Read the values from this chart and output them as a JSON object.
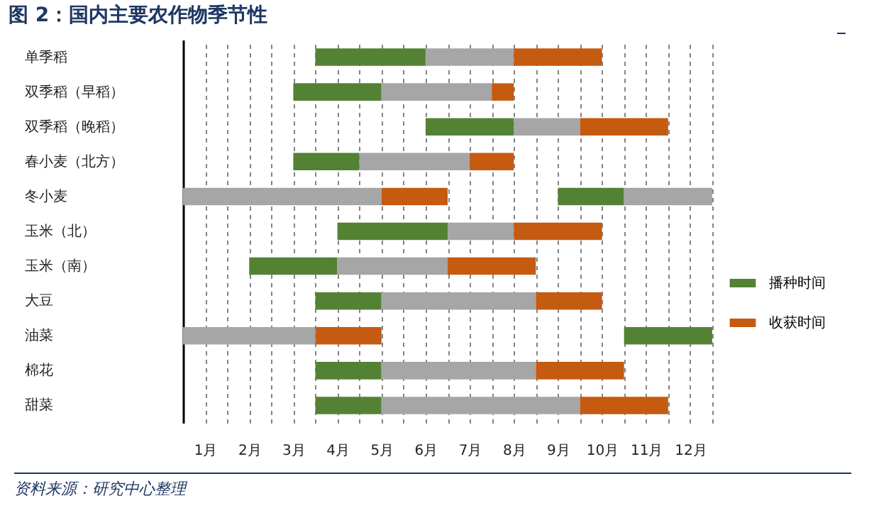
{
  "chart_data": {
    "type": "bar",
    "orientation": "horizontal",
    "title": "图 2：国内主要农作物季节性",
    "annotations": [
      "资料来源：研究中心整理"
    ],
    "categories": [
      "单季稻",
      "双季稻（早稻）",
      "双季稻（晚稻）",
      "春小麦（北方）",
      "冬小麦",
      "玉米（北）",
      "玉米（南）",
      "大豆",
      "油菜",
      "棉花",
      "甜菜"
    ],
    "series": [
      {
        "name": "播种时间",
        "color": "#548235",
        "base": [
          3,
          2.5,
          5.5,
          2.5,
          8.5,
          3.5,
          1.5,
          3,
          10,
          3,
          3
        ],
        "values": [
          2.5,
          2,
          2,
          1.5,
          1.5,
          2.5,
          2,
          1.5,
          2,
          1.5,
          1.5
        ]
      },
      {
        "color": "#a6a6a6",
        "base": [
          5.5,
          4.5,
          7.5,
          4,
          0,
          6,
          3.5,
          4.5,
          0,
          4.5,
          4.5
        ],
        "values": [
          2,
          2.5,
          1.5,
          2.5,
          4.5,
          1.5,
          2.5,
          3.5,
          3,
          3.5,
          4.5
        ]
      },
      {
        "name": "收获时间",
        "color": "#c55a11",
        "base": [
          7.5,
          7,
          9,
          6.5,
          4.5,
          7.5,
          6,
          8,
          3,
          8,
          9
        ],
        "values": [
          2,
          0.5,
          2,
          1,
          1.5,
          2,
          2,
          1.5,
          1.5,
          2,
          2
        ]
      },
      {
        "color": "#a6a6a6",
        "base": [
          null,
          null,
          null,
          null,
          10,
          null,
          null,
          null,
          null,
          null,
          null
        ],
        "values": [
          null,
          null,
          null,
          null,
          2,
          null,
          null,
          null,
          null,
          null,
          null
        ]
      }
    ],
    "xlim": [
      0,
      12
    ],
    "xticks": [
      {
        "value": 0.5,
        "label": "1月"
      },
      {
        "value": 1,
        "label": null
      },
      {
        "value": 1.5,
        "label": "2月"
      },
      {
        "value": 2,
        "label": null
      },
      {
        "value": 2.5,
        "label": "3月"
      },
      {
        "value": 3,
        "label": null
      },
      {
        "value": 3.5,
        "label": "4月"
      },
      {
        "value": 4,
        "label": null
      },
      {
        "value": 4.5,
        "label": "5月"
      },
      {
        "value": 5,
        "label": null
      },
      {
        "value": 5.5,
        "label": "6月"
      },
      {
        "value": 6,
        "label": null
      },
      {
        "value": 6.5,
        "label": "7月"
      },
      {
        "value": 7,
        "label": null
      },
      {
        "value": 7.5,
        "label": "8月"
      },
      {
        "value": 8,
        "label": null
      },
      {
        "value": 8.5,
        "label": "9月"
      },
      {
        "value": 9,
        "label": null
      },
      {
        "value": 9.5,
        "label": "10月"
      },
      {
        "value": 10,
        "label": null
      },
      {
        "value": 10.5,
        "label": "11月"
      },
      {
        "value": 11,
        "label": null
      },
      {
        "value": 11.5,
        "label": "12月"
      },
      {
        "value": 12,
        "label": null
      }
    ],
    "grid": "x",
    "legend": "right"
  }
}
